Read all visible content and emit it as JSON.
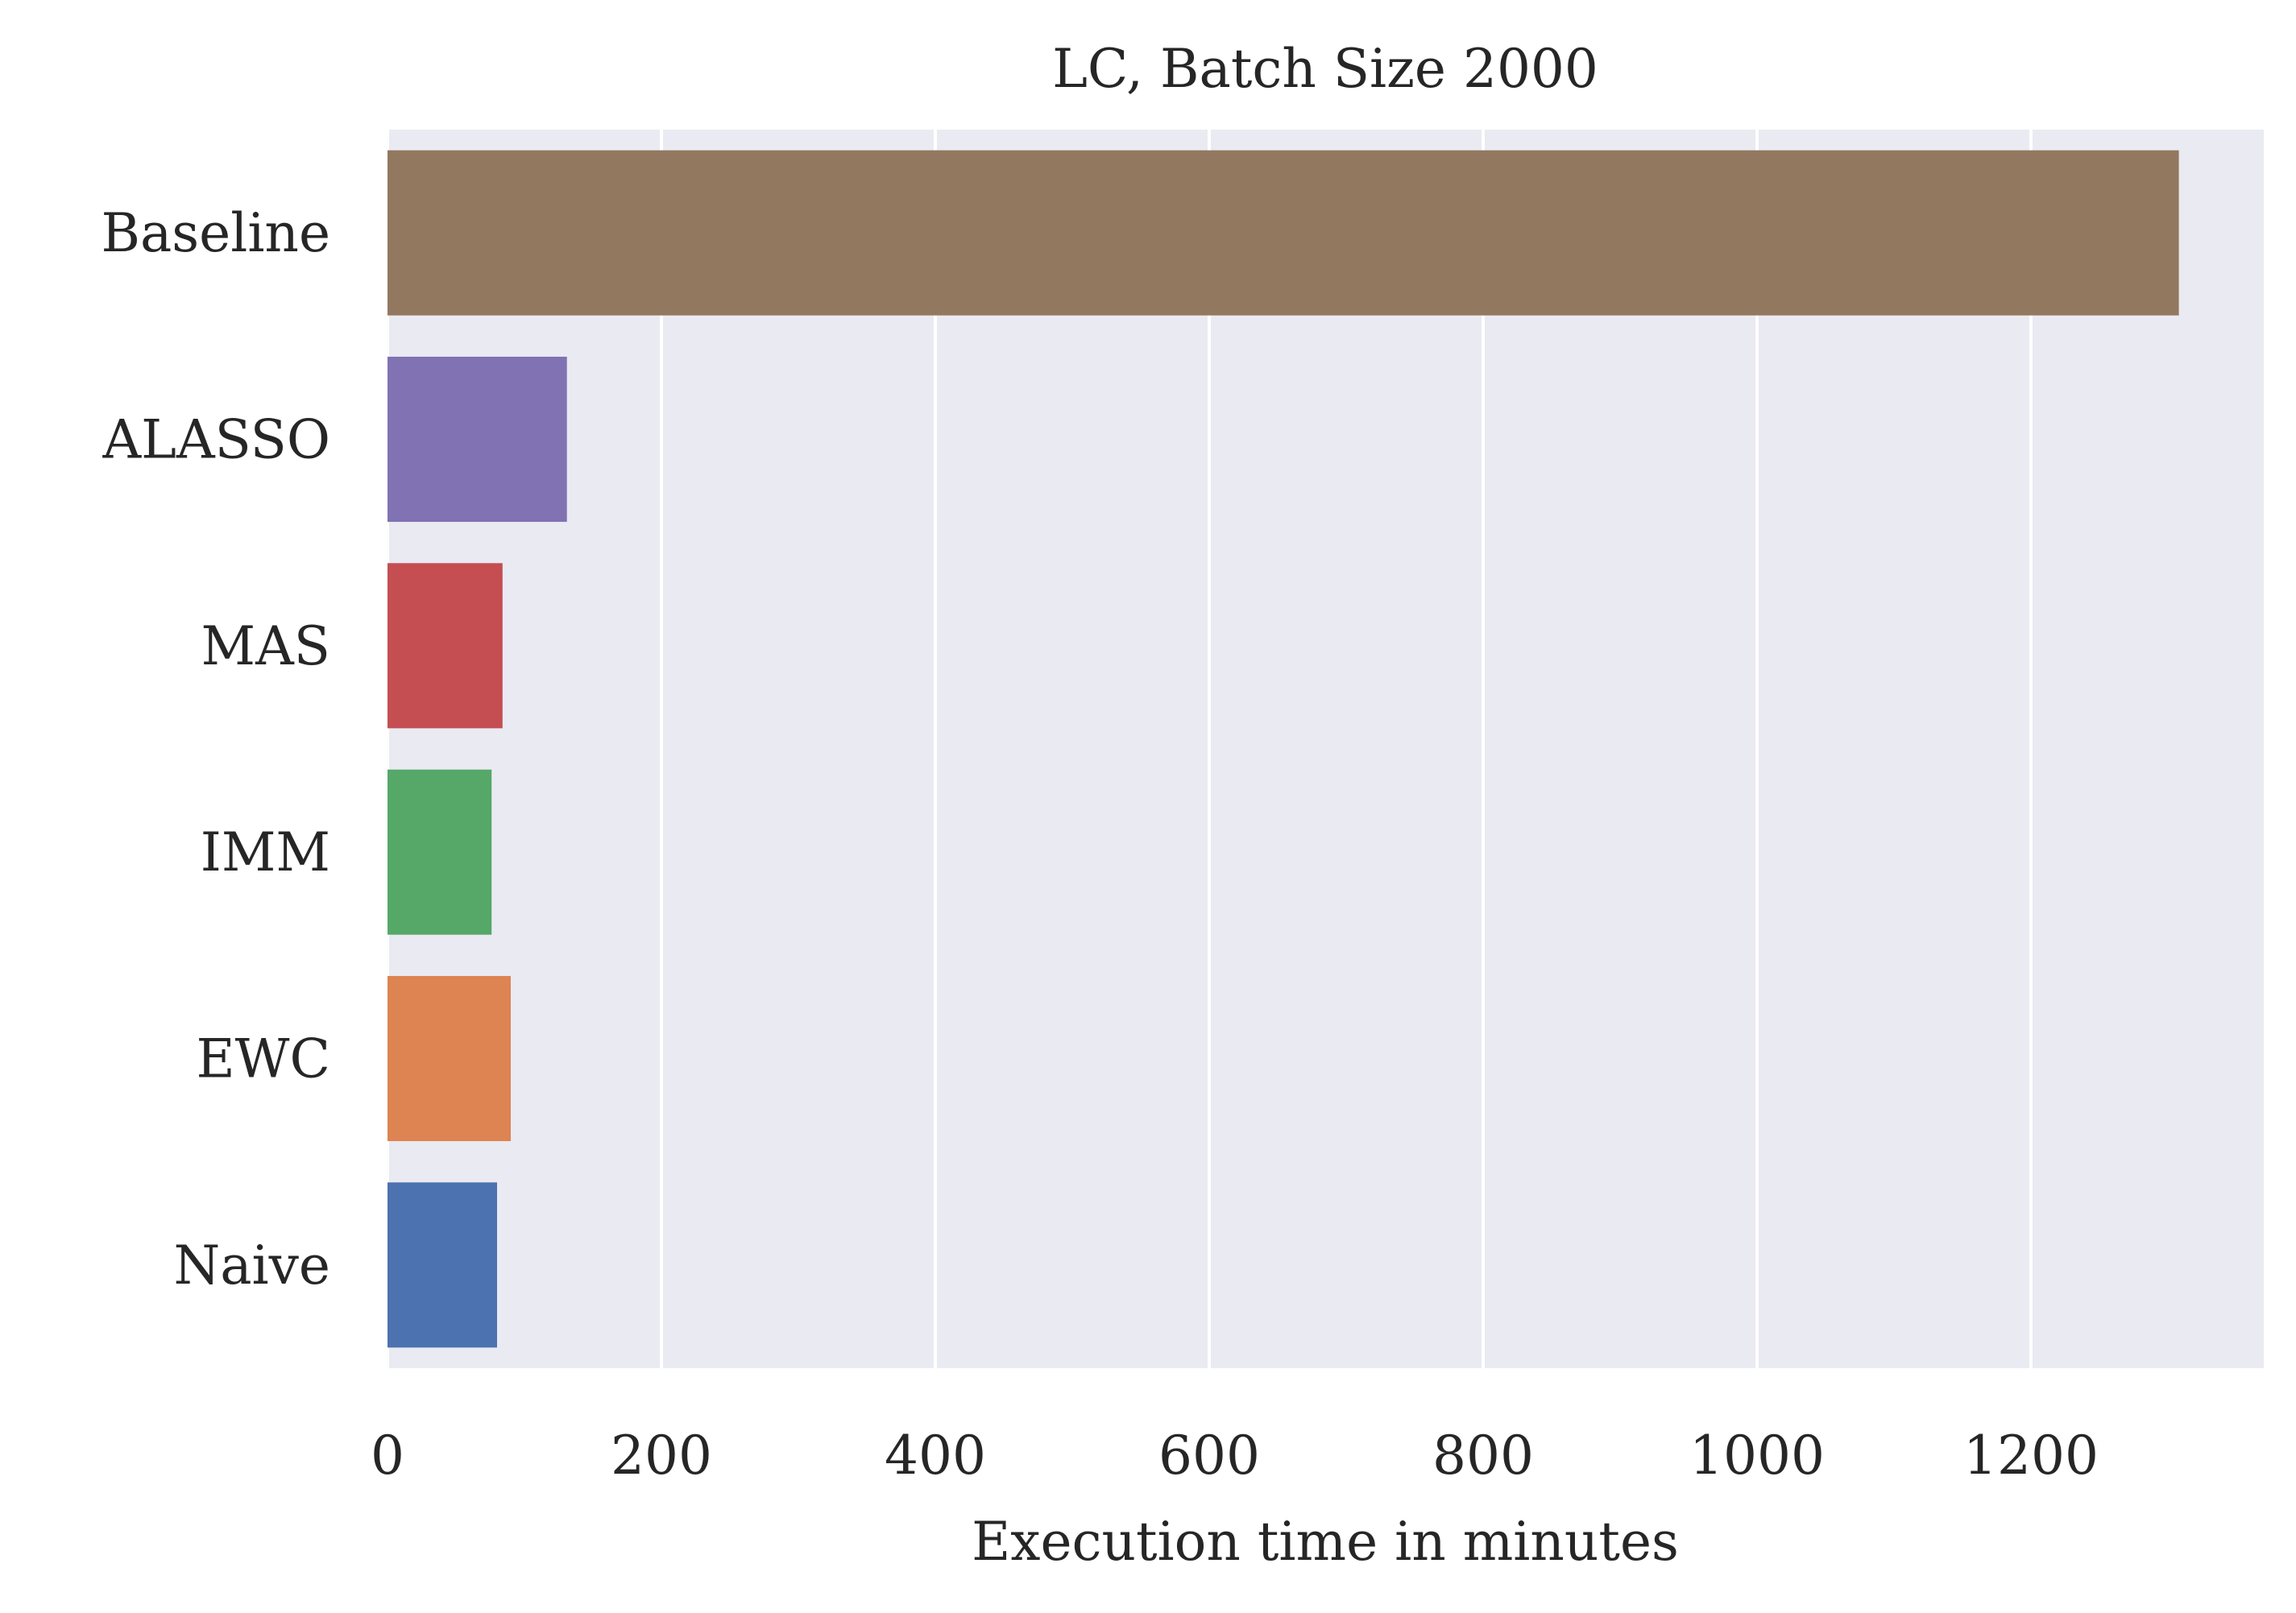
{
  "chart_data": {
    "type": "bar",
    "orientation": "horizontal",
    "title": "LC, Batch Size 2000",
    "xlabel": "Execution time in minutes",
    "ylabel": "",
    "categories": [
      "Baseline",
      "ALASSO",
      "MAS",
      "IMM",
      "EWC",
      "Naive"
    ],
    "values": [
      1308,
      131,
      84,
      76,
      90,
      80
    ],
    "colors": [
      "#937860",
      "#8172b3",
      "#c44e52",
      "#55a868",
      "#dd8452",
      "#4c72b0"
    ],
    "xlim": [
      0,
      1370
    ],
    "xticks": [
      0,
      200,
      400,
      600,
      800,
      1000,
      1200
    ],
    "xtick_labels": [
      "0",
      "200",
      "400",
      "600",
      "800",
      "1000",
      "1200"
    ],
    "grid": "vertical",
    "plot_background": "#eaeaf2",
    "legend": "none"
  }
}
